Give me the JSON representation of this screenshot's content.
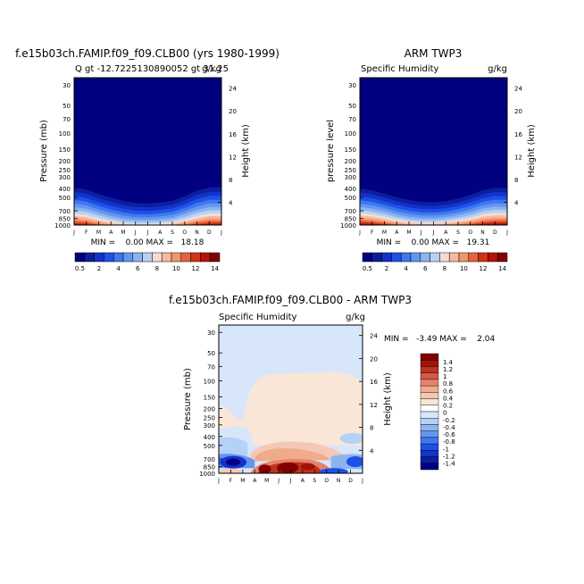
{
  "chart_data": [
    {
      "type": "heatmap",
      "title": "f.e15b03ch.FAMIP.f09_f09.CLB00 (yrs 1980-1999)",
      "subtitle_left": "Q gt -12.7225130890052 gt 31.25",
      "subtitle_right": "g/kg",
      "ylabel": "Pressure (mb)",
      "ylabel_right": "Height (km)",
      "stats": "MIN =    0.00 MAX =   18.18",
      "months": [
        "J",
        "F",
        "M",
        "A",
        "M",
        "J",
        "J",
        "A",
        "S",
        "O",
        "N",
        "D",
        "J"
      ],
      "pressure_ticks": [
        "30",
        "50",
        "70",
        "100",
        "150",
        "200",
        "250",
        "300",
        "400",
        "500",
        "700",
        "850",
        "1000"
      ],
      "height_ticks": [
        "24",
        "20",
        "16",
        "12",
        "8",
        "4"
      ],
      "colorbar_ticks": [
        "0.5",
        "2",
        "4",
        "6",
        "8",
        "10",
        "12",
        "14"
      ],
      "moist_top_km": [
        7.4,
        7.0,
        6.2,
        5.6,
        5.0,
        4.6,
        4.5,
        4.7,
        5.0,
        5.8,
        6.8,
        7.4,
        7.4
      ],
      "surface_value": [
        14.5,
        14.0,
        12.5,
        11.0,
        10.0,
        9.5,
        9.5,
        9.8,
        10.5,
        12.0,
        13.5,
        14.5,
        14.5
      ],
      "ylim_mb": [
        1000,
        25
      ]
    },
    {
      "type": "heatmap",
      "title": "ARM TWP3",
      "subtitle_left": "Specific Humidity",
      "subtitle_right": "g/kg",
      "ylabel": "pressure level",
      "ylabel_right": "Height (km)",
      "stats": "MIN =    0.00 MAX =   19.31",
      "months": [
        "J",
        "F",
        "M",
        "A",
        "M",
        "J",
        "J",
        "A",
        "S",
        "O",
        "N",
        "D",
        "J"
      ],
      "pressure_ticks": [
        "30",
        "50",
        "70",
        "100",
        "150",
        "200",
        "250",
        "300",
        "400",
        "500",
        "700",
        "850",
        "1000"
      ],
      "height_ticks": [
        "24",
        "20",
        "16",
        "12",
        "8",
        "4"
      ],
      "colorbar_ticks": [
        "0.5",
        "2",
        "4",
        "6",
        "8",
        "10",
        "12",
        "14"
      ],
      "moist_top_km": [
        7.2,
        6.8,
        6.2,
        5.6,
        5.1,
        4.8,
        4.7,
        4.9,
        5.3,
        6.0,
        6.8,
        7.3,
        7.2
      ],
      "surface_value": [
        15.0,
        14.5,
        13.5,
        12.0,
        11.0,
        10.5,
        10.5,
        11.0,
        12.0,
        13.0,
        14.5,
        15.0,
        15.0
      ],
      "ylim_mb": [
        1000,
        25
      ]
    },
    {
      "type": "heatmap",
      "title": "f.e15b03ch.FAMIP.f09_f09.CLB00 - ARM TWP3",
      "subtitle_left": "Specific Humidity",
      "subtitle_right": "g/kg",
      "ylabel": "Pressure (mb)",
      "ylabel_right": "Height (km)",
      "stats": "MIN =   -3.49 MAX =    2.04",
      "months": [
        "J",
        "F",
        "M",
        "A",
        "M",
        "J",
        "J",
        "A",
        "S",
        "O",
        "N",
        "D",
        "J"
      ],
      "pressure_ticks": [
        "30",
        "50",
        "70",
        "100",
        "150",
        "200",
        "250",
        "300",
        "400",
        "500",
        "700",
        "850",
        "1000"
      ],
      "height_ticks": [
        "24",
        "20",
        "16",
        "12",
        "8",
        "4"
      ],
      "colorbar_ticks": [
        "1.4",
        "1.2",
        "1",
        "0.8",
        "0.6",
        "0.4",
        "0.2",
        "0",
        "-0.2",
        "-0.4",
        "-0.6",
        "-0.8",
        "-1",
        "-1.2",
        "-1.4"
      ],
      "ylim_mb": [
        1000,
        25
      ]
    }
  ],
  "colors": {
    "abs_scale": [
      "#000080",
      "#0a1ea0",
      "#1432c8",
      "#1e50e6",
      "#3c78f0",
      "#6496f0",
      "#8cb4f0",
      "#b4d2f5",
      "#f5dcd2",
      "#f5b9a0",
      "#f0966e",
      "#e6643c",
      "#d23214",
      "#b41405",
      "#820000"
    ],
    "diff_scale": [
      "#000080",
      "#0a1ea0",
      "#1432c8",
      "#1e50e6",
      "#3c78f0",
      "#6496f0",
      "#8cb4f0",
      "#b4d2f5",
      "#d7e6fa",
      "#ffffff",
      "#fae6d7",
      "#f5c8b4",
      "#f0aa8c",
      "#e6826e",
      "#d25a46",
      "#be321e",
      "#a01405",
      "#820000"
    ]
  }
}
